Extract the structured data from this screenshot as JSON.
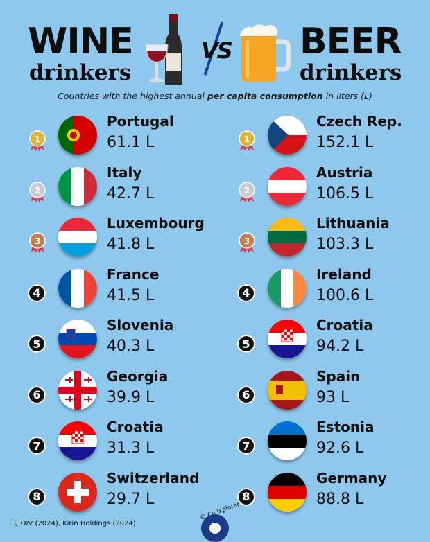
{
  "header": {
    "left_title": "WINE",
    "left_sub": "drinkers",
    "vs": "VS",
    "right_title": "BEER",
    "right_sub": "drinkers",
    "subtitle_a": "Countries with the highest annual ",
    "subtitle_b": "per capita consumption",
    "subtitle_c": " in liters (L)"
  },
  "medal_colors": {
    "gold": "#e2b42f",
    "silver": "#c9ccd2",
    "bronze": "#c47f4b"
  },
  "wine": [
    {
      "rank": "1",
      "medal": "gold",
      "country": "Portugal",
      "value": "61.1 L",
      "flag": "portugal"
    },
    {
      "rank": "2",
      "medal": "silver",
      "country": "Italy",
      "value": "42.7 L",
      "flag": "italy"
    },
    {
      "rank": "3",
      "medal": "bronze",
      "country": "Luxembourg",
      "value": "41.8 L",
      "flag": "luxembourg"
    },
    {
      "rank": "4",
      "medal": "",
      "country": "France",
      "value": "41.5 L",
      "flag": "france"
    },
    {
      "rank": "5",
      "medal": "",
      "country": "Slovenia",
      "value": "40.3 L",
      "flag": "slovenia"
    },
    {
      "rank": "6",
      "medal": "",
      "country": "Georgia",
      "value": "39.9 L",
      "flag": "georgia"
    },
    {
      "rank": "7",
      "medal": "",
      "country": "Croatia",
      "value": "31.3 L",
      "flag": "croatia"
    },
    {
      "rank": "8",
      "medal": "",
      "country": "Switzerland",
      "value": "29.7 L",
      "flag": "switzerland"
    }
  ],
  "beer": [
    {
      "rank": "1",
      "medal": "gold",
      "country": "Czech Rep.",
      "value": "152.1 L",
      "flag": "czech"
    },
    {
      "rank": "2",
      "medal": "silver",
      "country": "Austria",
      "value": "106.5 L",
      "flag": "austria"
    },
    {
      "rank": "3",
      "medal": "bronze",
      "country": "Lithuania",
      "value": "103.3 L",
      "flag": "lithuania"
    },
    {
      "rank": "4",
      "medal": "",
      "country": "Ireland",
      "value": "100.6 L",
      "flag": "ireland"
    },
    {
      "rank": "5",
      "medal": "",
      "country": "Croatia",
      "value": "94.2 L",
      "flag": "croatia"
    },
    {
      "rank": "6",
      "medal": "",
      "country": "Spain",
      "value": "93 L",
      "flag": "spain"
    },
    {
      "rank": "7",
      "medal": "",
      "country": "Estonia",
      "value": "92.6 L",
      "flag": "estonia"
    },
    {
      "rank": "8",
      "medal": "",
      "country": "Germany",
      "value": "88.8 L",
      "flag": "germany"
    }
  ],
  "footer": {
    "source": "OIV (2024), Kirin Holdings (2024)",
    "brand": "© Civixplorer"
  }
}
